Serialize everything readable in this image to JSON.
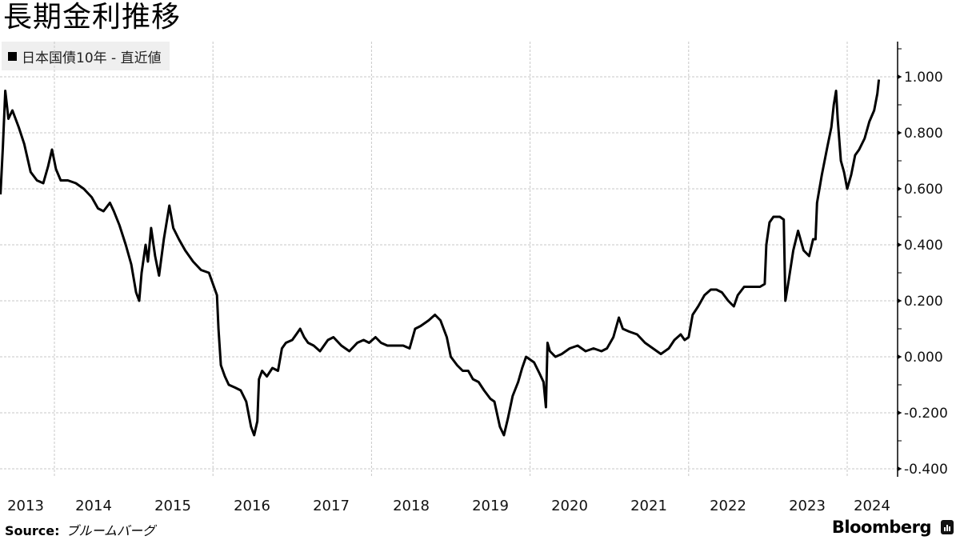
{
  "title": "長期金利推移",
  "legend": {
    "label": "日本国債10年 - 直近値",
    "color": "#000000"
  },
  "source": {
    "label": "Source:",
    "value": "ブルームバーグ"
  },
  "brand": {
    "name": "Bloomberg"
  },
  "chart_data": {
    "type": "line",
    "title": "長期金利推移",
    "series": [
      {
        "name": "日本国債10年 - 直近値",
        "color": "#000000"
      }
    ],
    "xlabel": "",
    "ylabel": "",
    "x_tick_labels": [
      "2013",
      "2014",
      "2015",
      "2016",
      "2017",
      "2018",
      "2019",
      "2020",
      "2021",
      "2022",
      "2023",
      "2024"
    ],
    "y_tick_labels": [
      "1.000",
      "0.800",
      "0.600",
      "0.400",
      "0.200",
      "0.000",
      "-0.200",
      "-0.400"
    ],
    "y_ticks": [
      1.0,
      0.8,
      0.6,
      0.4,
      0.2,
      0.0,
      -0.2,
      -0.4
    ],
    "ylim": [
      -0.42,
      1.12
    ],
    "xlim": [
      2013.32,
      2024.55
    ],
    "grid": true,
    "legend_position": "top-left",
    "points": [
      [
        2013.32,
        0.58
      ],
      [
        2013.35,
        0.75
      ],
      [
        2013.38,
        0.95
      ],
      [
        2013.42,
        0.85
      ],
      [
        2013.47,
        0.88
      ],
      [
        2013.55,
        0.82
      ],
      [
        2013.62,
        0.76
      ],
      [
        2013.7,
        0.66
      ],
      [
        2013.78,
        0.63
      ],
      [
        2013.86,
        0.62
      ],
      [
        2013.92,
        0.68
      ],
      [
        2013.97,
        0.74
      ],
      [
        2014.02,
        0.67
      ],
      [
        2014.08,
        0.63
      ],
      [
        2014.17,
        0.63
      ],
      [
        2014.27,
        0.62
      ],
      [
        2014.37,
        0.6
      ],
      [
        2014.47,
        0.57
      ],
      [
        2014.55,
        0.53
      ],
      [
        2014.62,
        0.52
      ],
      [
        2014.7,
        0.55
      ],
      [
        2014.75,
        0.52
      ],
      [
        2014.82,
        0.47
      ],
      [
        2014.9,
        0.4
      ],
      [
        2014.97,
        0.33
      ],
      [
        2015.03,
        0.23
      ],
      [
        2015.07,
        0.2
      ],
      [
        2015.1,
        0.3
      ],
      [
        2015.15,
        0.4
      ],
      [
        2015.18,
        0.34
      ],
      [
        2015.22,
        0.46
      ],
      [
        2015.27,
        0.36
      ],
      [
        2015.32,
        0.29
      ],
      [
        2015.38,
        0.42
      ],
      [
        2015.45,
        0.54
      ],
      [
        2015.5,
        0.46
      ],
      [
        2015.57,
        0.42
      ],
      [
        2015.65,
        0.38
      ],
      [
        2015.75,
        0.34
      ],
      [
        2015.85,
        0.31
      ],
      [
        2015.95,
        0.3
      ],
      [
        2016.0,
        0.26
      ],
      [
        2016.05,
        0.22
      ],
      [
        2016.07,
        0.1
      ],
      [
        2016.1,
        -0.03
      ],
      [
        2016.15,
        -0.07
      ],
      [
        2016.2,
        -0.1
      ],
      [
        2016.28,
        -0.11
      ],
      [
        2016.35,
        -0.12
      ],
      [
        2016.42,
        -0.16
      ],
      [
        2016.48,
        -0.25
      ],
      [
        2016.52,
        -0.28
      ],
      [
        2016.56,
        -0.23
      ],
      [
        2016.58,
        -0.08
      ],
      [
        2016.62,
        -0.05
      ],
      [
        2016.68,
        -0.07
      ],
      [
        2016.75,
        -0.04
      ],
      [
        2016.82,
        -0.05
      ],
      [
        2016.87,
        0.03
      ],
      [
        2016.92,
        0.05
      ],
      [
        2017.0,
        0.06
      ],
      [
        2017.05,
        0.08
      ],
      [
        2017.1,
        0.1
      ],
      [
        2017.15,
        0.07
      ],
      [
        2017.2,
        0.05
      ],
      [
        2017.27,
        0.04
      ],
      [
        2017.35,
        0.02
      ],
      [
        2017.45,
        0.06
      ],
      [
        2017.52,
        0.07
      ],
      [
        2017.62,
        0.04
      ],
      [
        2017.72,
        0.02
      ],
      [
        2017.82,
        0.05
      ],
      [
        2017.9,
        0.06
      ],
      [
        2017.97,
        0.05
      ],
      [
        2018.05,
        0.07
      ],
      [
        2018.12,
        0.05
      ],
      [
        2018.2,
        0.04
      ],
      [
        2018.3,
        0.04
      ],
      [
        2018.4,
        0.04
      ],
      [
        2018.48,
        0.03
      ],
      [
        2018.55,
        0.1
      ],
      [
        2018.62,
        0.11
      ],
      [
        2018.72,
        0.13
      ],
      [
        2018.8,
        0.15
      ],
      [
        2018.87,
        0.13
      ],
      [
        2018.95,
        0.07
      ],
      [
        2019.0,
        0.0
      ],
      [
        2019.08,
        -0.03
      ],
      [
        2019.15,
        -0.05
      ],
      [
        2019.22,
        -0.05
      ],
      [
        2019.28,
        -0.08
      ],
      [
        2019.35,
        -0.09
      ],
      [
        2019.42,
        -0.12
      ],
      [
        2019.5,
        -0.15
      ],
      [
        2019.55,
        -0.16
      ],
      [
        2019.62,
        -0.25
      ],
      [
        2019.67,
        -0.28
      ],
      [
        2019.72,
        -0.22
      ],
      [
        2019.78,
        -0.14
      ],
      [
        2019.85,
        -0.09
      ],
      [
        2019.9,
        -0.04
      ],
      [
        2019.95,
        0.0
      ],
      [
        2020.05,
        -0.02
      ],
      [
        2020.12,
        -0.06
      ],
      [
        2020.17,
        -0.09
      ],
      [
        2020.2,
        -0.18
      ],
      [
        2020.22,
        0.05
      ],
      [
        2020.25,
        0.02
      ],
      [
        2020.32,
        0.0
      ],
      [
        2020.4,
        0.01
      ],
      [
        2020.5,
        0.03
      ],
      [
        2020.6,
        0.04
      ],
      [
        2020.7,
        0.02
      ],
      [
        2020.8,
        0.03
      ],
      [
        2020.9,
        0.02
      ],
      [
        2020.97,
        0.03
      ],
      [
        2021.05,
        0.07
      ],
      [
        2021.12,
        0.14
      ],
      [
        2021.17,
        0.1
      ],
      [
        2021.25,
        0.09
      ],
      [
        2021.35,
        0.08
      ],
      [
        2021.45,
        0.05
      ],
      [
        2021.55,
        0.03
      ],
      [
        2021.65,
        0.01
      ],
      [
        2021.75,
        0.03
      ],
      [
        2021.82,
        0.06
      ],
      [
        2021.9,
        0.08
      ],
      [
        2021.95,
        0.06
      ],
      [
        2022.0,
        0.07
      ],
      [
        2022.05,
        0.15
      ],
      [
        2022.12,
        0.18
      ],
      [
        2022.2,
        0.22
      ],
      [
        2022.28,
        0.24
      ],
      [
        2022.35,
        0.24
      ],
      [
        2022.42,
        0.23
      ],
      [
        2022.5,
        0.2
      ],
      [
        2022.57,
        0.18
      ],
      [
        2022.62,
        0.22
      ],
      [
        2022.7,
        0.25
      ],
      [
        2022.8,
        0.25
      ],
      [
        2022.9,
        0.25
      ],
      [
        2022.96,
        0.26
      ],
      [
        2022.98,
        0.4
      ],
      [
        2023.02,
        0.48
      ],
      [
        2023.07,
        0.5
      ],
      [
        2023.15,
        0.5
      ],
      [
        2023.2,
        0.49
      ],
      [
        2023.22,
        0.2
      ],
      [
        2023.26,
        0.27
      ],
      [
        2023.32,
        0.38
      ],
      [
        2023.38,
        0.45
      ],
      [
        2023.45,
        0.38
      ],
      [
        2023.52,
        0.36
      ],
      [
        2023.57,
        0.42
      ],
      [
        2023.6,
        0.42
      ],
      [
        2023.62,
        0.55
      ],
      [
        2023.68,
        0.65
      ],
      [
        2023.75,
        0.75
      ],
      [
        2023.8,
        0.82
      ],
      [
        2023.83,
        0.9
      ],
      [
        2023.86,
        0.95
      ],
      [
        2023.88,
        0.85
      ],
      [
        2023.92,
        0.7
      ],
      [
        2023.96,
        0.66
      ],
      [
        2024.0,
        0.6
      ],
      [
        2024.05,
        0.65
      ],
      [
        2024.1,
        0.72
      ],
      [
        2024.15,
        0.74
      ],
      [
        2024.22,
        0.78
      ],
      [
        2024.28,
        0.84
      ],
      [
        2024.34,
        0.88
      ],
      [
        2024.38,
        0.94
      ],
      [
        2024.4,
        0.99
      ]
    ]
  }
}
